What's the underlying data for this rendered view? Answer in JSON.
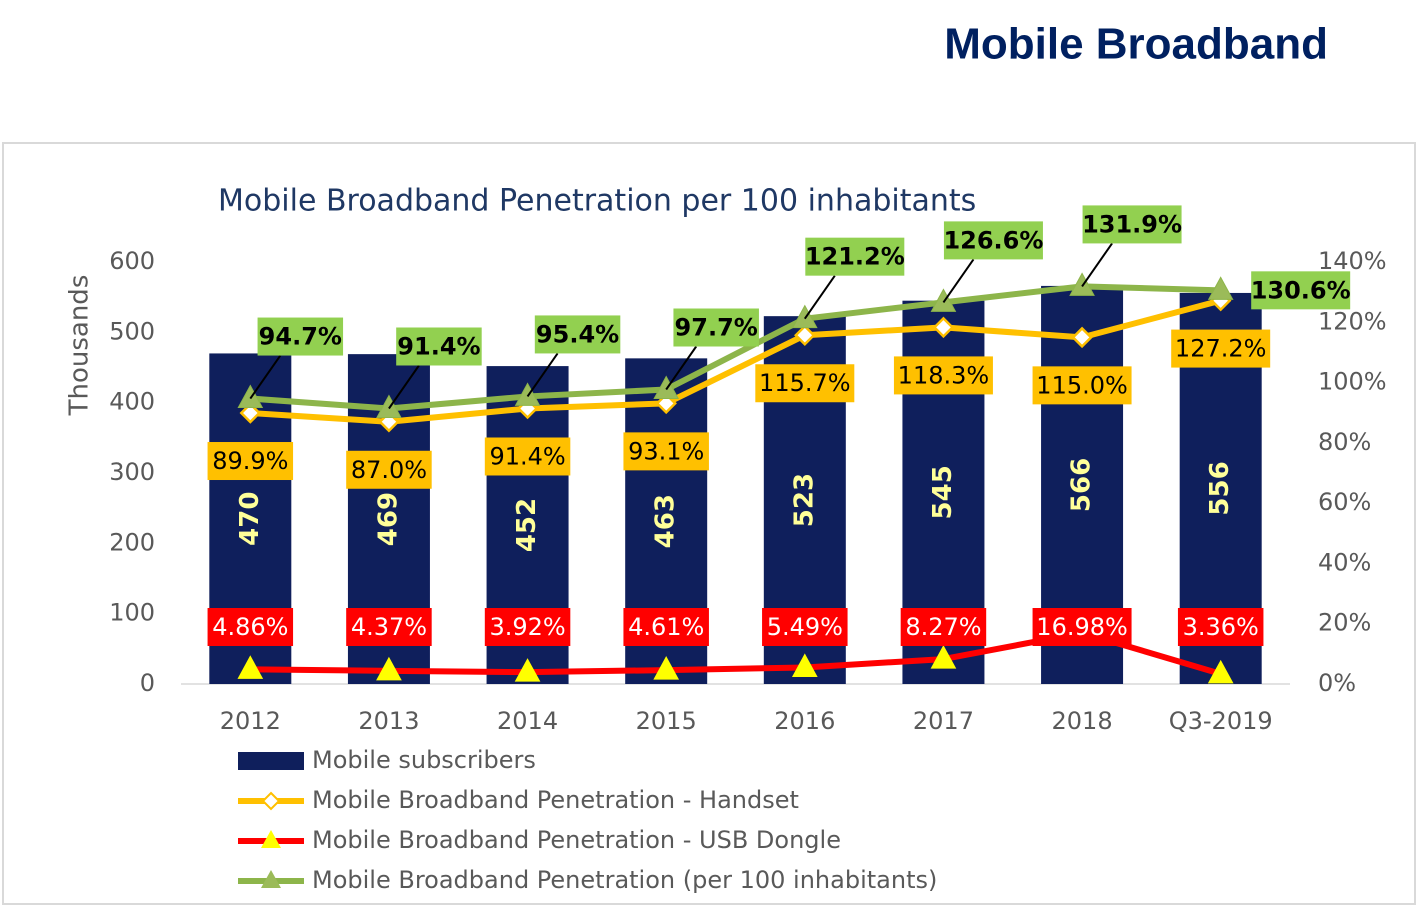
{
  "title": "Mobile Broadband",
  "chart_data": {
    "type": "bar",
    "title": "Mobile Broadband Penetration  per 100 inhabitants",
    "y_label": "Thousands",
    "categories": [
      "2012",
      "2013",
      "2014",
      "2015",
      "2016",
      "2017",
      "2018",
      "Q3-2019"
    ],
    "series": [
      {
        "name": "Mobile subscribers",
        "type": "bar",
        "color": "#0f1f5c",
        "label_color": "#ffff99",
        "values": [
          470,
          469,
          452,
          463,
          523,
          545,
          566,
          556
        ]
      },
      {
        "name": "Mobile Broadband Penetration - Handset",
        "type": "line",
        "axis": "y2",
        "color": "#ffc000",
        "marker": "diamond",
        "marker_color": "#ffffff",
        "label_box": "#ffc000",
        "label_color": "#000000",
        "values": [
          89.9,
          87.0,
          91.4,
          93.1,
          115.7,
          118.3,
          115.0,
          127.2
        ],
        "value_labels": [
          "89.9%",
          "87.0%",
          "91.4%",
          "93.1%",
          "115.7%",
          "118.3%",
          "115.0%",
          "127.2%"
        ]
      },
      {
        "name": "Mobile Broadband Penetration - USB Dongle",
        "type": "line",
        "axis": "y2",
        "color": "#ff0000",
        "marker": "triangle",
        "marker_color": "#ffff00",
        "label_box": "#ff0000",
        "label_color": "#ffffff",
        "values": [
          4.86,
          4.37,
          3.92,
          4.61,
          5.49,
          8.27,
          16.98,
          3.36
        ],
        "value_labels": [
          "4.86%",
          "4.37%",
          "3.92%",
          "4.61%",
          "5.49%",
          "8.27%",
          "16.98%",
          "3.36%"
        ]
      },
      {
        "name": "Mobile Broadband Penetration (per 100 inhabitants)",
        "type": "line",
        "axis": "y2",
        "color": "#8db54a",
        "marker": "triangle",
        "marker_color": "#9bbb59",
        "label_box": "#92d050",
        "label_color": "#000000",
        "values": [
          94.7,
          91.4,
          95.4,
          97.7,
          121.2,
          126.6,
          131.9,
          130.6
        ],
        "value_labels": [
          "94.7%",
          "91.4%",
          "95.4%",
          "97.7%",
          "121.2%",
          "126.6%",
          "131.9%",
          "130.6%"
        ]
      }
    ],
    "ylim": [
      0,
      600
    ],
    "yticks": [
      0,
      100,
      200,
      300,
      400,
      500,
      600
    ],
    "y2lim": [
      0,
      140
    ],
    "y2ticks": [
      {
        "value": 0,
        "label": "0%"
      },
      {
        "value": 20,
        "label": "20%"
      },
      {
        "value": 40,
        "label": "40%"
      },
      {
        "value": 60,
        "label": "60%"
      },
      {
        "value": 80,
        "label": "80%"
      },
      {
        "value": 100,
        "label": "100%"
      },
      {
        "value": 120,
        "label": "120%"
      },
      {
        "value": 140,
        "label": "140%"
      }
    ],
    "grid": false,
    "legend": "bottom"
  }
}
